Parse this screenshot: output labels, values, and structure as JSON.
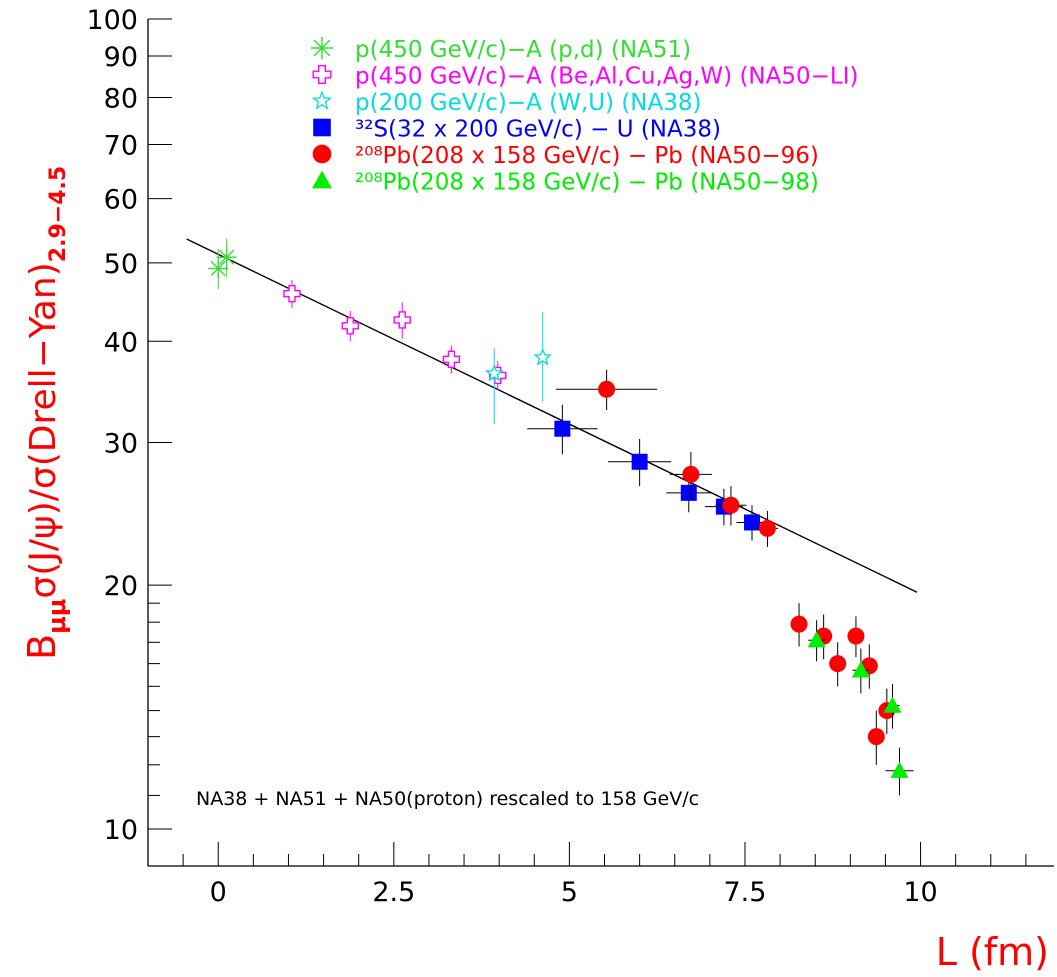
{
  "chart_data": {
    "type": "scatter",
    "x_scale": "linear",
    "y_scale": "log",
    "xlim": [
      -1.0,
      11.9
    ],
    "ylim": [
      9.0,
      100
    ],
    "x_ticks": [
      {
        "value": 0,
        "label": "0"
      },
      {
        "value": 2.5,
        "label": "2.5"
      },
      {
        "value": 5,
        "label": "5"
      },
      {
        "value": 7.5,
        "label": "7.5"
      },
      {
        "value": 10,
        "label": "10"
      }
    ],
    "y_ticks": [
      {
        "value": 10,
        "label": "10"
      },
      {
        "value": 20,
        "label": "20"
      },
      {
        "value": 30,
        "label": "30"
      },
      {
        "value": 40,
        "label": "40"
      },
      {
        "value": 50,
        "label": "50"
      },
      {
        "value": 60,
        "label": "60"
      },
      {
        "value": 70,
        "label": "70"
      },
      {
        "value": 80,
        "label": "80"
      },
      {
        "value": 90,
        "label": "90"
      },
      {
        "value": 100,
        "label": "100"
      }
    ],
    "xlabel": "L (fm)",
    "ylabel": {
      "prefix": "B",
      "prefix_sub": "μμ",
      "main": "σ(J/ψ)/σ(Drell−Yan)",
      "main_sub": "2.9−4.5"
    },
    "annotation": "NA38 + NA51 + NA50(proton) rescaled to 158 GeV/c",
    "fit_line": {
      "x": [
        -0.45,
        9.95
      ],
      "y": [
        53.5,
        19.6
      ]
    },
    "legend_position": "top-center",
    "series": [
      {
        "name": "p(450 GeV/c)−A (p,d) (NA51)",
        "marker": "asterisk",
        "color": "#33dd33",
        "points": [
          {
            "x": 0.0,
            "y": 49.2,
            "xerr": 0.12,
            "yerr": 2.8
          },
          {
            "x": 0.12,
            "y": 50.8,
            "xerr": 0.12,
            "yerr": 2.8
          }
        ]
      },
      {
        "name": "p(450 GeV/c)−A (Be,Al,Cu,Ag,W) (NA50−LI)",
        "marker": "open-cross",
        "color": "#ff00ff",
        "points": [
          {
            "x": 1.05,
            "y": 45.8,
            "xerr": 0.1,
            "yerr": 1.8
          },
          {
            "x": 1.88,
            "y": 41.8,
            "xerr": 0.1,
            "yerr": 1.8
          },
          {
            "x": 2.62,
            "y": 42.5,
            "xerr": 0.1,
            "yerr": 2.2
          },
          {
            "x": 3.32,
            "y": 38.0,
            "xerr": 0.1,
            "yerr": 1.5
          },
          {
            "x": 3.98,
            "y": 36.3,
            "xerr": 0.1,
            "yerr": 1.5
          }
        ]
      },
      {
        "name": "p(200 GeV/c)−A (W,U) (NA38)",
        "marker": "open-star",
        "color": "#00dddd",
        "points": [
          {
            "x": 3.93,
            "y": 36.5,
            "xerr": 0.06,
            "yerr_up": 2.7,
            "yerr_down": 4.9
          },
          {
            "x": 4.62,
            "y": 38.2,
            "xerr": 0.06,
            "yerr_up": 5.3,
            "yerr_down": 4.5
          }
        ]
      },
      {
        "name": "³²S(32 x 200 GeV/c) − U (NA38)",
        "marker": "square",
        "color": "#0000ff",
        "points": [
          {
            "x": 4.9,
            "y": 31.2,
            "xerr": 0.5,
            "yerr": 2.2
          },
          {
            "x": 6.0,
            "y": 28.4,
            "xerr": 0.45,
            "yerr": 1.9
          },
          {
            "x": 6.7,
            "y": 26.0,
            "xerr": 0.32,
            "yerr": 1.4
          },
          {
            "x": 7.2,
            "y": 25.0,
            "xerr": 0.27,
            "yerr": 1.3
          },
          {
            "x": 7.6,
            "y": 23.9,
            "xerr": 0.22,
            "yerr": 1.2
          }
        ]
      },
      {
        "name": "²⁰⁸Pb(208 x 158 GeV/c) − Pb (NA50−96)",
        "marker": "circle",
        "color": "#ff0000",
        "points": [
          {
            "x": 5.53,
            "y": 34.9,
            "xerr": 0.72,
            "yerr": 2.0
          },
          {
            "x": 6.73,
            "y": 27.4,
            "xerr": 0.3,
            "yerr": 1.8
          },
          {
            "x": 7.3,
            "y": 25.1,
            "xerr": 0.22,
            "yerr": 1.4
          },
          {
            "x": 7.82,
            "y": 23.5,
            "xerr": 0.15,
            "yerr": 1.2
          },
          {
            "x": 8.27,
            "y": 17.9,
            "xerr": 0.12,
            "yerr": 1.1
          },
          {
            "x": 8.62,
            "y": 17.3,
            "xerr": 0.12,
            "yerr": 1.1
          },
          {
            "x": 8.82,
            "y": 16.0,
            "xerr": 0.12,
            "yerr": 1.0
          },
          {
            "x": 9.08,
            "y": 17.3,
            "xerr": 0.12,
            "yerr": 1.0
          },
          {
            "x": 9.27,
            "y": 15.9,
            "xerr": 0.12,
            "yerr": 1.0
          },
          {
            "x": 9.37,
            "y": 13.0,
            "xerr": 0.1,
            "yerr": 1.0
          },
          {
            "x": 9.52,
            "y": 14.0,
            "xerr": 0.1,
            "yerr": 0.9
          }
        ]
      },
      {
        "name": "²⁰⁸Pb(208 x 158 GeV/c) − Pb (NA50−98)",
        "marker": "triangle",
        "color": "#00ee00",
        "points": [
          {
            "x": 8.52,
            "y": 17.1,
            "xerr": 0.12,
            "yerr": 1.0
          },
          {
            "x": 9.15,
            "y": 15.7,
            "xerr": 0.12,
            "yerr": 1.0
          },
          {
            "x": 9.6,
            "y": 14.2,
            "xerr": 0.1,
            "yerr": 0.9
          },
          {
            "x": 9.7,
            "y": 11.8,
            "xerr": 0.2,
            "yerr": 0.8
          }
        ]
      }
    ]
  }
}
